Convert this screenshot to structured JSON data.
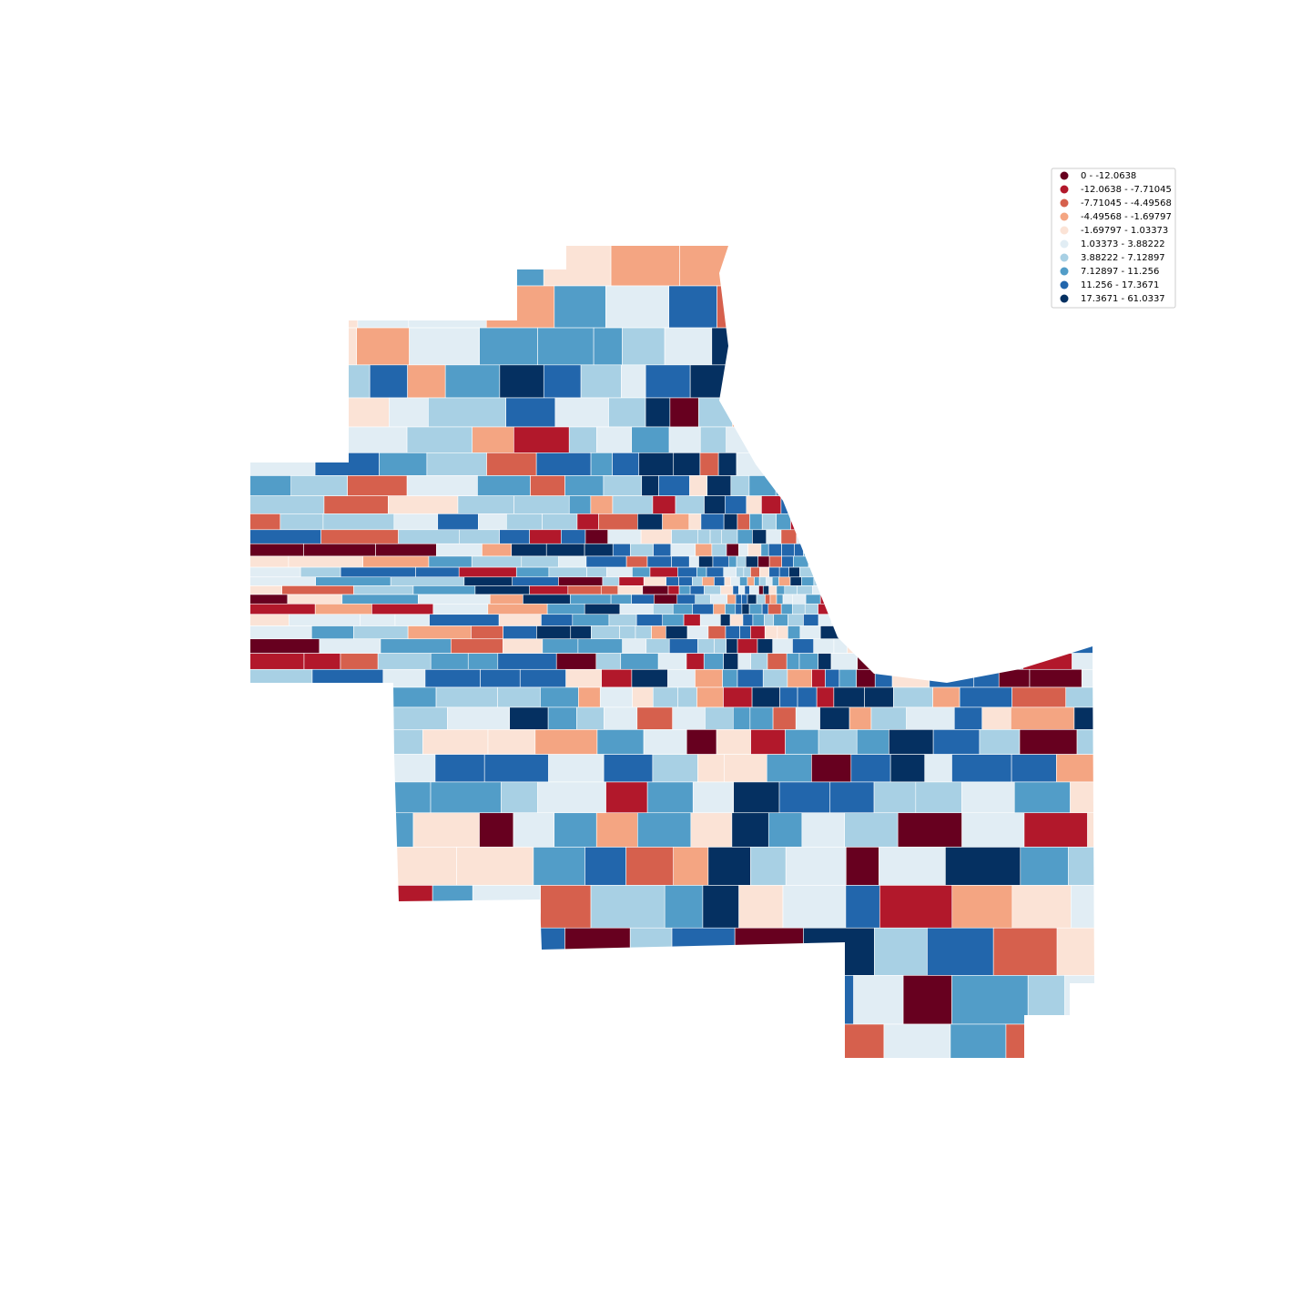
{
  "legend": {
    "items": [
      {
        "label": "0 - -12.0638",
        "color": "#67001f"
      },
      {
        "label": "-12.0638 - -7.71045",
        "color": "#b2182b"
      },
      {
        "label": "-7.71045 - -4.49568",
        "color": "#d6604d"
      },
      {
        "label": "-4.49568 - -1.69797",
        "color": "#f4a582"
      },
      {
        "label": "-1.69797 - 1.03373",
        "color": "#fbe3d6"
      },
      {
        "label": "1.03373 - 3.88222",
        "color": "#e1edf4"
      },
      {
        "label": "3.88222 - 7.12897",
        "color": "#a8d0e4"
      },
      {
        "label": "7.12897 - 11.256",
        "color": "#529dc8"
      },
      {
        "label": "11.256 - 17.3671",
        "color": "#2266ac"
      },
      {
        "label": "17.3671 - 61.0337",
        "color": "#053061"
      }
    ]
  }
}
